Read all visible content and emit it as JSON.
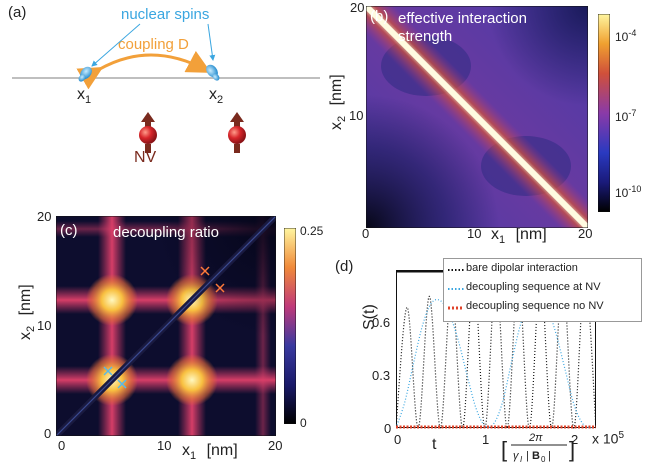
{
  "panel_a": {
    "label": "(a)",
    "nuclear_spins": "nuclear spins",
    "coupling": "coupling D",
    "x1": "x",
    "x1_sub": "1",
    "x2": "x",
    "x2_sub": "2",
    "nv": "NV",
    "colors": {
      "spins": "#3aa6e0",
      "coupling": "#f2a03a",
      "nv_text": "#7a2a1e",
      "nv_ball": "#d8262b"
    }
  },
  "panel_b": {
    "label": "(b)",
    "title_line1": "effective interaction",
    "title_line2": "strength",
    "xlabel": "x",
    "xlabel_sub": "1",
    "xunit": "[nm]",
    "ylabel": "x",
    "ylabel_sub": "2",
    "yunit": "[nm]",
    "xticks": [
      "0",
      "10",
      "20"
    ],
    "yticks": [
      "20",
      "10"
    ],
    "colorbar_ticks": [
      {
        "base": "10",
        "exp": "-4"
      },
      {
        "base": "10",
        "exp": "-7"
      },
      {
        "base": "10",
        "exp": "-10"
      }
    ]
  },
  "panel_c": {
    "label": "(c)",
    "title": "decoupling ratio",
    "xlabel": "x",
    "xlabel_sub": "1",
    "xunit": "[nm]",
    "ylabel": "x",
    "ylabel_sub": "2",
    "yunit": "[nm]",
    "xticks": [
      "0",
      "10",
      "20"
    ],
    "yticks": [
      "20",
      "10",
      "0"
    ],
    "colorbar_ticks": [
      "0.25",
      "0"
    ],
    "marker_colors": {
      "orange": "#ff7a3a",
      "blue": "#5ab8e8"
    }
  },
  "chart_data": {
    "type": "line",
    "label": "(d)",
    "ylabel": "S(t)",
    "xlabel": "t",
    "xunit_label": "[2π / (γ_I |B_0|)]",
    "x_multiplier": "x 10",
    "x_multiplier_exp": "5",
    "xticks": [
      "0",
      "1",
      "2"
    ],
    "yticks": [
      "0.6",
      "0.3",
      "0"
    ],
    "xlim": [
      0,
      2.25
    ],
    "ylim": [
      0,
      0.72
    ],
    "legend_position": "top-right",
    "series": [
      {
        "name": "bare dipolar interaction",
        "color": "#111111",
        "style": "dotted",
        "x": [
          0,
          0.125,
          0.25,
          0.375,
          0.5,
          0.625,
          0.75,
          0.875,
          1.0,
          1.125,
          1.25,
          1.375,
          1.5,
          1.625,
          1.75,
          1.875,
          2.0,
          2.125,
          2.25
        ],
        "y": [
          0,
          0.55,
          0.0,
          0.6,
          0.0,
          0.65,
          0.0,
          0.7,
          0.0,
          0.7,
          0.0,
          0.7,
          0.0,
          0.7,
          0.0,
          0.7,
          0.0,
          0.7,
          0.0
        ]
      },
      {
        "name": "decoupling sequence at NV",
        "color": "#3aa6e0",
        "style": "dotted",
        "x": [
          0,
          0.1,
          0.2,
          0.3,
          0.4,
          0.5,
          0.6,
          0.7,
          0.8,
          0.9,
          1.0,
          1.1,
          1.2,
          1.3,
          1.4,
          1.5,
          1.6,
          1.7,
          1.8,
          1.9,
          2.0,
          2.1,
          2.2
        ],
        "y": [
          0,
          0.12,
          0.3,
          0.47,
          0.57,
          0.58,
          0.52,
          0.4,
          0.24,
          0.09,
          0.01,
          0.02,
          0.12,
          0.3,
          0.47,
          0.58,
          0.6,
          0.55,
          0.43,
          0.27,
          0.11,
          0.02,
          0.0
        ]
      },
      {
        "name": "decoupling sequence no NV",
        "color": "#e0432a",
        "style": "dotted",
        "x": [
          0,
          2.25
        ],
        "y": [
          0,
          0
        ]
      }
    ]
  }
}
